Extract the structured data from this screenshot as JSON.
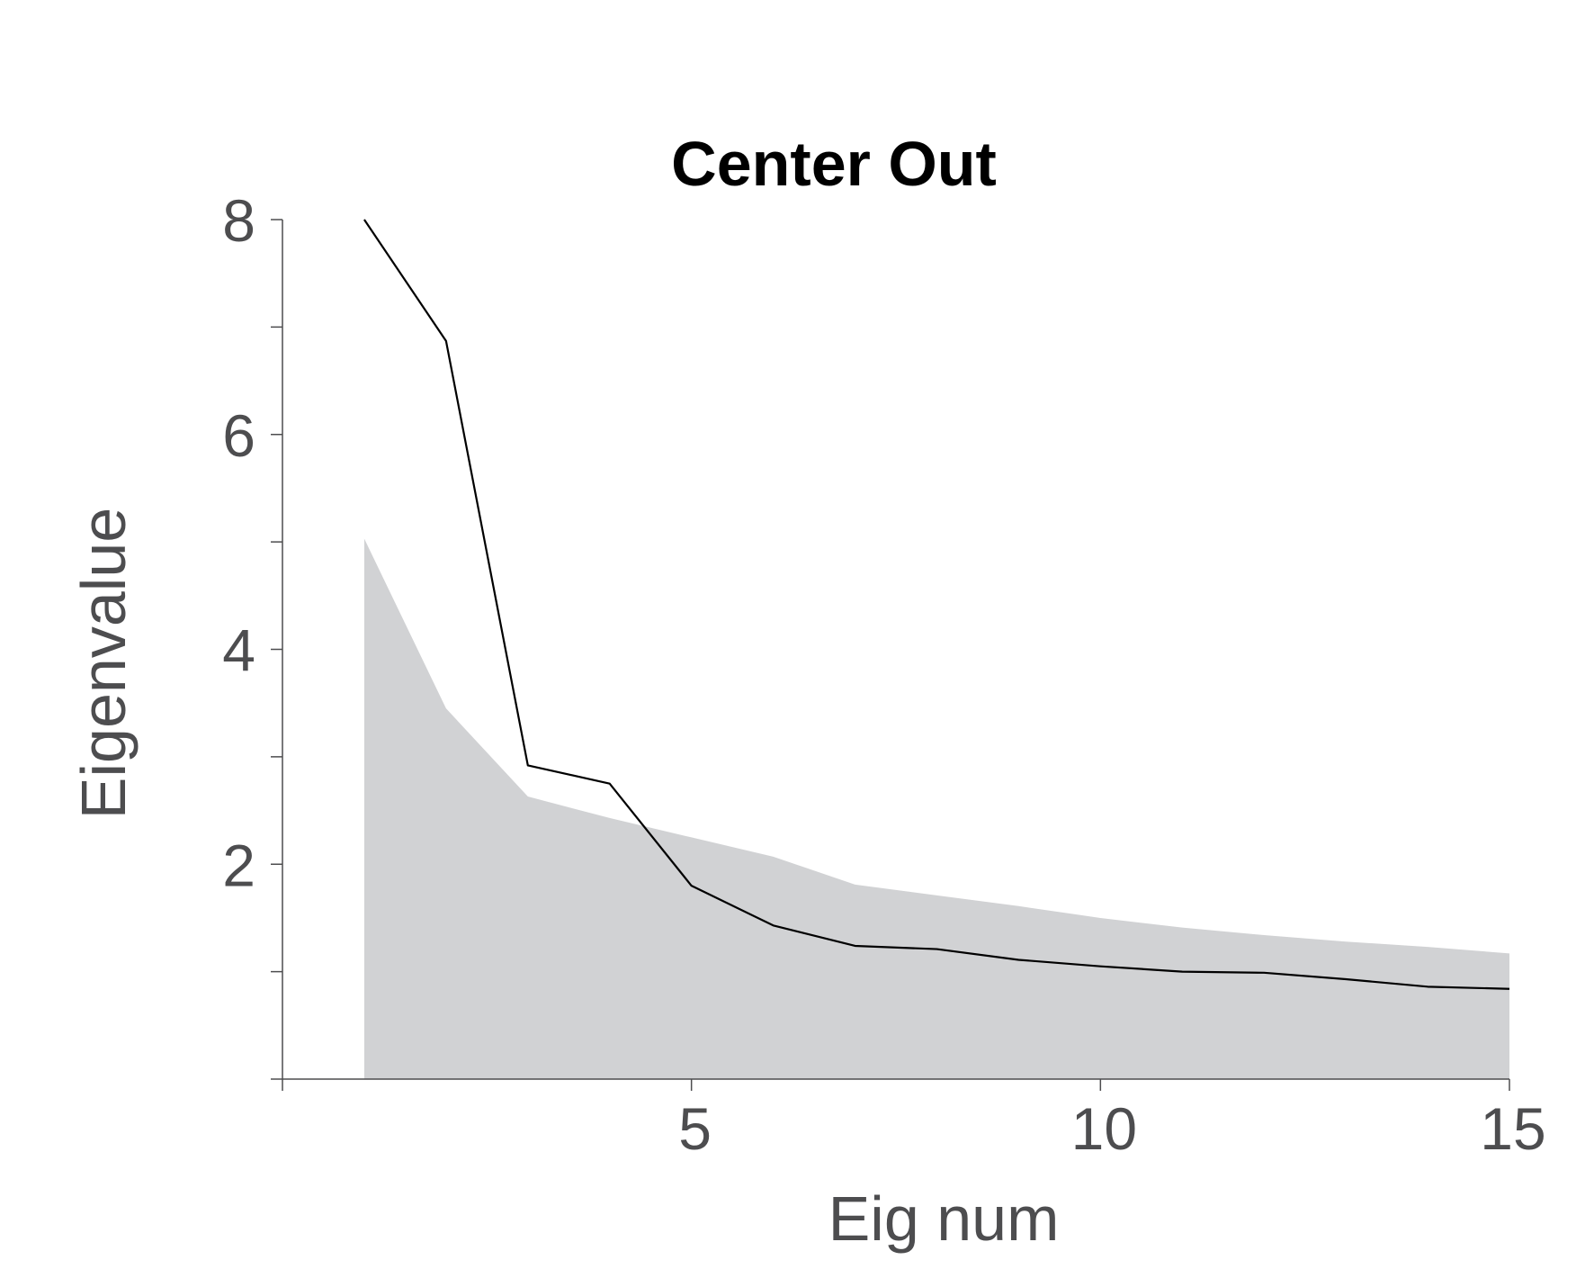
{
  "chart_data": {
    "type": "area",
    "title": "Center Out",
    "xlabel": "Eig num",
    "ylabel": "Eigenvalue",
    "xlim": [
      0,
      15
    ],
    "ylim": [
      0,
      8
    ],
    "x_ticks": [
      5,
      10,
      15
    ],
    "x_minor_ticks": [
      0
    ],
    "y_ticks": [
      2,
      4,
      6,
      8
    ],
    "y_minor_ticks": [
      0,
      1,
      3,
      5,
      7
    ],
    "grid": false,
    "legend": "none",
    "x": [
      1,
      2,
      3,
      4,
      5,
      6,
      7,
      8,
      9,
      10,
      11,
      12,
      13,
      14,
      15
    ],
    "series": [
      {
        "values": [
          5.03,
          3.45,
          2.63,
          2.43,
          2.25,
          2.07,
          1.81,
          1.71,
          1.61,
          1.5,
          1.41,
          1.34,
          1.28,
          1.23,
          1.17
        ],
        "color": "#d1d2d4",
        "style": "filled-area"
      },
      {
        "values": [
          8.0,
          6.87,
          2.92,
          2.75,
          1.8,
          1.43,
          1.24,
          1.21,
          1.11,
          1.05,
          1.0,
          0.99,
          0.93,
          0.86,
          0.84
        ],
        "color": "#000000",
        "style": "line"
      }
    ]
  }
}
